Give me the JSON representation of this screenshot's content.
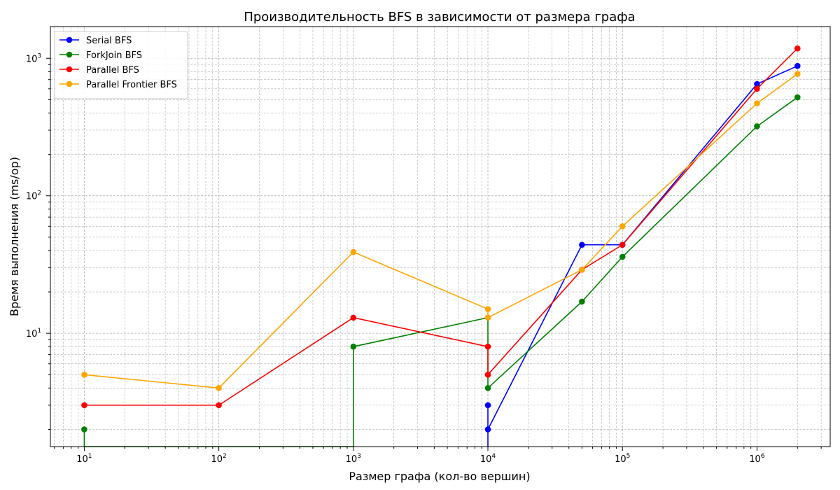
{
  "chart_data": {
    "type": "line",
    "title": "Производительность BFS в зависимости от размера графа",
    "xlabel": "Размер графа (кол-во вершин)",
    "ylabel": "Время выполнения (ms/op)",
    "xscale": "log",
    "yscale": "log",
    "xlim": [
      5.6,
      3500000
    ],
    "ylim": [
      1.5,
      1700
    ],
    "grid": true,
    "legend_position": "top-left",
    "x_ticks": [
      {
        "base": "10",
        "exp": "1"
      },
      {
        "base": "10",
        "exp": "2"
      },
      {
        "base": "10",
        "exp": "3"
      },
      {
        "base": "10",
        "exp": "4"
      },
      {
        "base": "10",
        "exp": "5"
      },
      {
        "base": "10",
        "exp": "6"
      }
    ],
    "y_ticks": [
      {
        "base": "10",
        "exp": "1"
      },
      {
        "base": "10",
        "exp": "2"
      },
      {
        "base": "10",
        "exp": "3"
      }
    ],
    "series": [
      {
        "name": "Serial BFS",
        "color": "#0000ff",
        "points": [
          [
            10000,
            0.5
          ],
          [
            10000,
            3
          ],
          [
            10000,
            2
          ],
          [
            50000,
            44
          ],
          [
            100000,
            44
          ],
          [
            1000000,
            650
          ],
          [
            2000000,
            880
          ]
        ]
      },
      {
        "name": "ForkJoin BFS",
        "color": "#008000",
        "points": [
          [
            10,
            2
          ],
          [
            10,
            0.5
          ],
          [
            1000,
            0.5
          ],
          [
            1000,
            8
          ],
          [
            10000,
            13
          ],
          [
            10000,
            4
          ],
          [
            50000,
            17
          ],
          [
            100000,
            36
          ],
          [
            1000000,
            320
          ],
          [
            2000000,
            520
          ]
        ]
      },
      {
        "name": "Parallel BFS",
        "color": "#ff0000",
        "points": [
          [
            10,
            3
          ],
          [
            100,
            3
          ],
          [
            1000,
            13
          ],
          [
            10000,
            8
          ],
          [
            10000,
            5
          ],
          [
            50000,
            29
          ],
          [
            100000,
            44
          ],
          [
            1000000,
            600
          ],
          [
            2000000,
            1180
          ]
        ]
      },
      {
        "name": "Parallel Frontier BFS",
        "color": "#ffa500",
        "points": [
          [
            10,
            5
          ],
          [
            100,
            4
          ],
          [
            1000,
            39
          ],
          [
            10000,
            15
          ],
          [
            10000,
            13
          ],
          [
            50000,
            29
          ],
          [
            100000,
            60
          ],
          [
            1000000,
            470
          ],
          [
            2000000,
            770
          ]
        ]
      }
    ]
  }
}
